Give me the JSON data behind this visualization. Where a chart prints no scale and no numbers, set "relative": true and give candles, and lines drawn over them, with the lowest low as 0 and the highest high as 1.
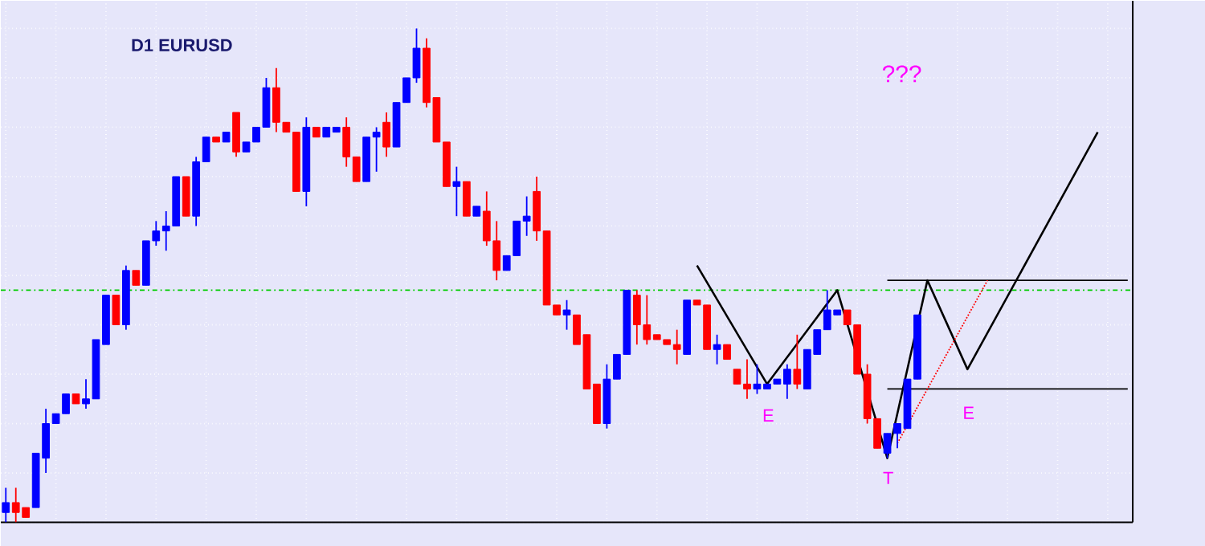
{
  "chart_data": {
    "type": "candlestick",
    "title": "D1 EURUSD",
    "relative": true,
    "grid": true,
    "tick_labels": false,
    "categories": [
      null,
      null,
      null,
      null,
      null,
      null,
      null,
      null,
      null,
      null,
      null,
      null,
      null,
      null,
      null,
      null,
      null,
      null,
      null,
      null,
      null,
      null,
      null,
      null,
      null,
      null,
      null,
      null,
      null,
      null,
      null,
      null,
      null,
      null,
      null,
      null,
      null,
      null,
      null,
      null,
      null,
      null,
      null,
      null,
      null,
      null,
      null,
      null,
      null,
      null,
      null,
      null,
      null,
      null,
      null,
      null,
      null,
      null,
      null,
      null,
      null,
      null,
      null,
      null,
      null,
      null,
      null,
      null,
      null,
      null,
      null,
      null,
      null,
      null,
      null,
      null,
      null,
      null,
      null,
      null,
      null,
      null,
      null,
      null,
      null,
      null,
      null,
      null,
      null,
      null,
      null,
      null,
      null,
      null,
      null,
      null,
      null,
      null,
      null,
      null,
      null,
      null,
      null,
      null,
      null,
      null,
      null,
      null,
      null,
      null,
      null,
      null,
      null
    ],
    "ohlc": [
      [
        0.02,
        0.07,
        0.0,
        0.04
      ],
      [
        0.04,
        0.07,
        0.0,
        0.02
      ],
      [
        0.03,
        0.03,
        0.01,
        0.01
      ],
      [
        0.03,
        0.14,
        0.03,
        0.14
      ],
      [
        0.13,
        0.23,
        0.1,
        0.2
      ],
      [
        0.2,
        0.22,
        0.2,
        0.22
      ],
      [
        0.22,
        0.26,
        0.22,
        0.26
      ],
      [
        0.26,
        0.26,
        0.24,
        0.24
      ],
      [
        0.24,
        0.29,
        0.23,
        0.25
      ],
      [
        0.25,
        0.37,
        0.25,
        0.37
      ],
      [
        0.36,
        0.46,
        0.36,
        0.46
      ],
      [
        0.46,
        0.46,
        0.4,
        0.4
      ],
      [
        0.4,
        0.52,
        0.39,
        0.51
      ],
      [
        0.51,
        0.51,
        0.48,
        0.48
      ],
      [
        0.48,
        0.57,
        0.48,
        0.57
      ],
      [
        0.57,
        0.61,
        0.56,
        0.59
      ],
      [
        0.59,
        0.63,
        0.55,
        0.6
      ],
      [
        0.6,
        0.7,
        0.6,
        0.7
      ],
      [
        0.7,
        0.7,
        0.62,
        0.62
      ],
      [
        0.62,
        0.74,
        0.6,
        0.73
      ],
      [
        0.73,
        0.78,
        0.73,
        0.78
      ],
      [
        0.78,
        0.78,
        0.77,
        0.77
      ],
      [
        0.77,
        0.79,
        0.77,
        0.79
      ],
      [
        0.83,
        0.83,
        0.74,
        0.75
      ],
      [
        0.75,
        0.77,
        0.75,
        0.77
      ],
      [
        0.77,
        0.8,
        0.77,
        0.8
      ],
      [
        0.8,
        0.9,
        0.8,
        0.88
      ],
      [
        0.88,
        0.92,
        0.79,
        0.81
      ],
      [
        0.81,
        0.81,
        0.79,
        0.79
      ],
      [
        0.79,
        0.79,
        0.67,
        0.67
      ],
      [
        0.67,
        0.82,
        0.64,
        0.8
      ],
      [
        0.8,
        0.8,
        0.78,
        0.78
      ],
      [
        0.78,
        0.8,
        0.78,
        0.8
      ],
      [
        0.79,
        0.8,
        0.79,
        0.8
      ],
      [
        0.8,
        0.82,
        0.72,
        0.74
      ],
      [
        0.74,
        0.74,
        0.69,
        0.69
      ],
      [
        0.69,
        0.78,
        0.69,
        0.78
      ],
      [
        0.78,
        0.8,
        0.71,
        0.79
      ],
      [
        0.81,
        0.83,
        0.74,
        0.76
      ],
      [
        0.76,
        0.85,
        0.76,
        0.85
      ],
      [
        0.85,
        0.9,
        0.85,
        0.9
      ],
      [
        0.9,
        1.0,
        0.89,
        0.96
      ],
      [
        0.96,
        0.98,
        0.84,
        0.85
      ],
      [
        0.86,
        0.86,
        0.77,
        0.77
      ],
      [
        0.77,
        0.77,
        0.68,
        0.68
      ],
      [
        0.68,
        0.72,
        0.62,
        0.69
      ],
      [
        0.69,
        0.69,
        0.62,
        0.62
      ],
      [
        0.62,
        0.64,
        0.62,
        0.64
      ],
      [
        0.63,
        0.67,
        0.56,
        0.57
      ],
      [
        0.57,
        0.61,
        0.49,
        0.51
      ],
      [
        0.51,
        0.54,
        0.51,
        0.54
      ],
      [
        0.54,
        0.61,
        0.54,
        0.61
      ],
      [
        0.61,
        0.66,
        0.58,
        0.62
      ],
      [
        0.67,
        0.7,
        0.57,
        0.59
      ],
      [
        0.59,
        0.59,
        0.44,
        0.44
      ],
      [
        0.44,
        0.44,
        0.42,
        0.42
      ],
      [
        0.42,
        0.45,
        0.39,
        0.43
      ],
      [
        0.42,
        0.42,
        0.36,
        0.36
      ],
      [
        0.38,
        0.38,
        0.27,
        0.27
      ],
      [
        0.28,
        0.28,
        0.2,
        0.2
      ],
      [
        0.2,
        0.32,
        0.19,
        0.29
      ],
      [
        0.29,
        0.34,
        0.29,
        0.34
      ],
      [
        0.34,
        0.47,
        0.34,
        0.47
      ],
      [
        0.46,
        0.47,
        0.36,
        0.4
      ],
      [
        0.4,
        0.46,
        0.36,
        0.37
      ],
      [
        0.38,
        0.38,
        0.37,
        0.37
      ],
      [
        0.37,
        0.37,
        0.36,
        0.36
      ],
      [
        0.36,
        0.39,
        0.32,
        0.35
      ],
      [
        0.34,
        0.45,
        0.34,
        0.45
      ],
      [
        0.45,
        0.45,
        0.44,
        0.44
      ],
      [
        0.44,
        0.44,
        0.35,
        0.35
      ],
      [
        0.35,
        0.38,
        0.32,
        0.36
      ],
      [
        0.36,
        0.36,
        0.33,
        0.33
      ],
      [
        0.31,
        0.31,
        0.28,
        0.28
      ],
      [
        0.28,
        0.33,
        0.25,
        0.27
      ],
      [
        0.27,
        0.32,
        0.26,
        0.28
      ],
      [
        0.27,
        0.28,
        0.27,
        0.28
      ],
      [
        0.28,
        0.29,
        0.28,
        0.29
      ],
      [
        0.28,
        0.32,
        0.25,
        0.31
      ],
      [
        0.31,
        0.38,
        0.27,
        0.28
      ],
      [
        0.27,
        0.35,
        0.27,
        0.35
      ],
      [
        0.34,
        0.39,
        0.34,
        0.39
      ],
      [
        0.39,
        0.47,
        0.39,
        0.43
      ],
      [
        0.42,
        0.43,
        0.42,
        0.43
      ],
      [
        0.43,
        0.43,
        0.4,
        0.4
      ],
      [
        0.4,
        0.4,
        0.3,
        0.3
      ],
      [
        0.3,
        0.32,
        0.2,
        0.21
      ],
      [
        0.21,
        0.21,
        0.15,
        0.15
      ],
      [
        0.14,
        0.18,
        0.13,
        0.18
      ],
      [
        0.18,
        0.2,
        0.15,
        0.2
      ],
      [
        0.19,
        0.29,
        0.19,
        0.29
      ],
      [
        0.29,
        0.42,
        0.29,
        0.42
      ],
      null,
      null,
      null,
      null,
      null,
      null,
      null,
      null,
      null,
      null,
      null,
      null,
      null,
      null,
      null,
      null,
      null,
      null,
      null,
      null,
      null
    ],
    "series": [
      {
        "type": "line",
        "color": "#000000",
        "values": [
          null,
          null,
          null,
          null,
          null,
          null,
          null,
          null,
          null,
          null,
          null,
          null,
          null,
          null,
          null,
          null,
          null,
          null,
          null,
          null,
          null,
          null,
          null,
          null,
          null,
          null,
          null,
          null,
          null,
          null,
          null,
          null,
          null,
          null,
          null,
          null,
          null,
          null,
          null,
          null,
          null,
          null,
          null,
          null,
          null,
          null,
          null,
          null,
          null,
          null,
          null,
          null,
          null,
          null,
          null,
          null,
          null,
          null,
          null,
          null,
          null,
          null,
          null,
          null,
          null,
          null,
          null,
          null,
          null,
          0.52,
          null,
          null,
          null,
          null,
          null,
          null,
          0.28,
          null,
          null,
          null,
          null,
          null,
          null,
          0.47,
          null,
          null,
          null,
          null,
          0.13,
          null,
          null,
          null,
          0.49,
          null,
          null,
          null,
          0.31,
          null,
          null,
          null,
          null,
          null,
          null,
          null,
          null,
          null,
          null,
          null,
          null,
          0.79,
          null,
          null,
          null
        ]
      },
      {
        "type": "line",
        "color": "#000000",
        "values": [
          null,
          null,
          null,
          null,
          null,
          null,
          null,
          null,
          null,
          null,
          null,
          null,
          null,
          null,
          null,
          null,
          null,
          null,
          null,
          null,
          null,
          null,
          null,
          null,
          null,
          null,
          null,
          null,
          null,
          null,
          null,
          null,
          null,
          null,
          null,
          null,
          null,
          null,
          null,
          null,
          null,
          null,
          null,
          null,
          null,
          null,
          null,
          null,
          null,
          null,
          null,
          null,
          null,
          null,
          null,
          null,
          null,
          null,
          null,
          null,
          null,
          null,
          null,
          null,
          null,
          null,
          null,
          null,
          null,
          null,
          null,
          null,
          null,
          null,
          null,
          null,
          null,
          null,
          null,
          null,
          null,
          null,
          null,
          null,
          null,
          null,
          null,
          null,
          0.49,
          null,
          null,
          null,
          null,
          null,
          null,
          null,
          null,
          null,
          null,
          null,
          null,
          null,
          null,
          null,
          null,
          null,
          null,
          null,
          null,
          null,
          null,
          null,
          0.49
        ]
      },
      {
        "type": "line",
        "color": "#000000",
        "values": [
          null,
          null,
          null,
          null,
          null,
          null,
          null,
          null,
          null,
          null,
          null,
          null,
          null,
          null,
          null,
          null,
          null,
          null,
          null,
          null,
          null,
          null,
          null,
          null,
          null,
          null,
          null,
          null,
          null,
          null,
          null,
          null,
          null,
          null,
          null,
          null,
          null,
          null,
          null,
          null,
          null,
          null,
          null,
          null,
          null,
          null,
          null,
          null,
          null,
          null,
          null,
          null,
          null,
          null,
          null,
          null,
          null,
          null,
          null,
          null,
          null,
          null,
          null,
          null,
          null,
          null,
          null,
          null,
          null,
          null,
          null,
          null,
          null,
          null,
          null,
          null,
          null,
          null,
          null,
          null,
          null,
          null,
          null,
          null,
          null,
          null,
          null,
          null,
          0.27,
          null,
          null,
          null,
          null,
          null,
          null,
          null,
          null,
          null,
          null,
          null,
          null,
          null,
          null,
          null,
          null,
          null,
          null,
          null,
          null,
          null,
          null,
          null,
          0.27
        ]
      },
      {
        "type": "line",
        "color": "#ff0000",
        "line_style": "dotted",
        "values": [
          null,
          null,
          null,
          null,
          null,
          null,
          null,
          null,
          null,
          null,
          null,
          null,
          null,
          null,
          null,
          null,
          null,
          null,
          null,
          null,
          null,
          null,
          null,
          null,
          null,
          null,
          null,
          null,
          null,
          null,
          null,
          null,
          null,
          null,
          null,
          null,
          null,
          null,
          null,
          null,
          null,
          null,
          null,
          null,
          null,
          null,
          null,
          null,
          null,
          null,
          null,
          null,
          null,
          null,
          null,
          null,
          null,
          null,
          null,
          null,
          null,
          null,
          null,
          null,
          null,
          null,
          null,
          null,
          null,
          null,
          null,
          null,
          null,
          null,
          null,
          null,
          null,
          null,
          null,
          null,
          null,
          null,
          null,
          null,
          null,
          null,
          null,
          null,
          null,
          0.16,
          null,
          null,
          null,
          null,
          null,
          null,
          null,
          null,
          0.49,
          null,
          null,
          null,
          null,
          null,
          null,
          null,
          null,
          null,
          null,
          null,
          null,
          null,
          null
        ]
      }
    ],
    "ref_lines": [
      {
        "axis": "y",
        "value": 0.47,
        "color": "#00cc00",
        "line_style": "dashed"
      }
    ],
    "annotations": [
      "???",
      "E",
      "T",
      "E"
    ]
  }
}
